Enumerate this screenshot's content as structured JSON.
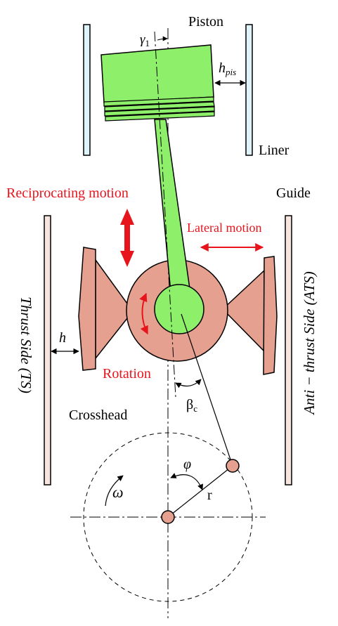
{
  "labels": {
    "piston": "Piston",
    "liner": "Liner",
    "guide": "Guide",
    "crosshead": "Crosshead",
    "reciprocating_motion": "Reciprocating motion",
    "lateral_motion": "Lateral motion",
    "rotation": "Rotation",
    "gamma_symbol": "γ",
    "gamma_subscript": "1",
    "h_pis_main": "h",
    "h_pis_subscript": "pis",
    "h": "h",
    "beta_main": "β",
    "beta_subscript": "c",
    "phi": "φ",
    "omega": "ω",
    "r": "r",
    "thrust_side": "Thrust Side (TS)",
    "anti_thrust_side": "Anti − thrust Side (ATS)"
  },
  "colors": {
    "green_fill": "#8ef06a",
    "salmon_fill": "#e5a08f",
    "red_accent": "#e8141c",
    "liner_fill": "#dff3fb",
    "guide_fill": "#f7e6e0"
  }
}
